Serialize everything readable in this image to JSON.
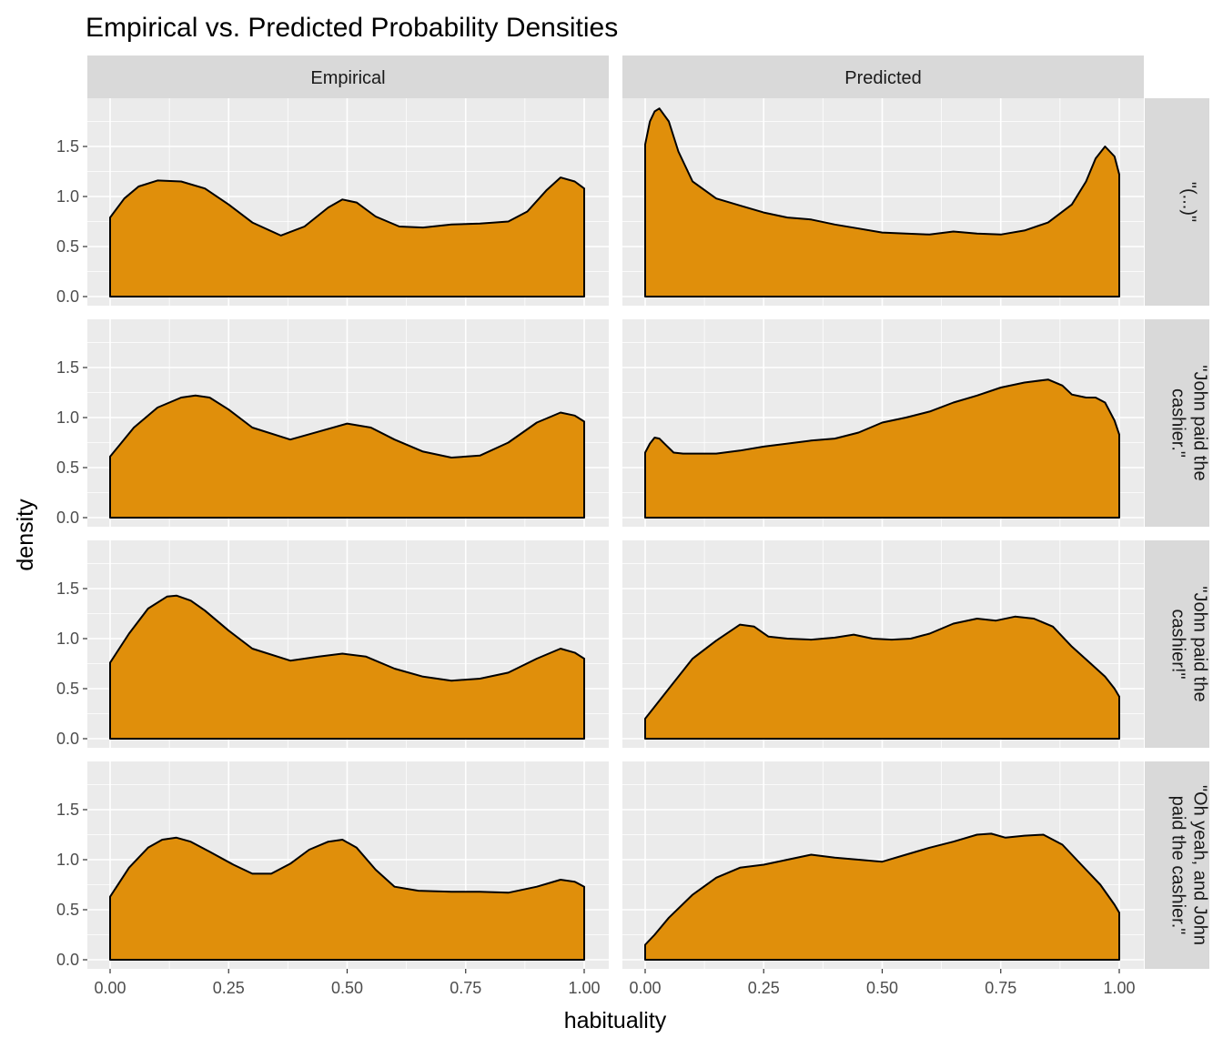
{
  "chart_data": {
    "type": "area",
    "title": "Empirical vs. Predicted Probability Densities",
    "xlabel": "habituality",
    "ylabel": "density",
    "xlim": [
      0,
      1
    ],
    "ylim": [
      0,
      1.85
    ],
    "x_ticks": [
      0.0,
      0.25,
      0.5,
      0.75,
      1.0
    ],
    "x_tick_labels": [
      "0.00",
      "0.25",
      "0.50",
      "0.75",
      "1.00"
    ],
    "y_ticks": [
      0.0,
      0.5,
      1.0,
      1.5
    ],
    "y_tick_labels": [
      "0.0",
      "0.5",
      "1.0",
      "1.5"
    ],
    "fill_color": "#E08F0B",
    "panel_color": "#EBEBEB",
    "strip_color": "#D9D9D9",
    "columns": [
      "Empirical",
      "Predicted"
    ],
    "rows": [
      {
        "label_lines": [
          "\"(...)\""
        ]
      },
      {
        "label_lines": [
          "\"John paid the",
          "cashier.\""
        ]
      },
      {
        "label_lines": [
          "\"John paid the",
          "cashier!\""
        ]
      },
      {
        "label_lines": [
          "\"Oh yeah, and John",
          "paid the cashier.\""
        ]
      }
    ],
    "series": [
      [
        {
          "name": "Empirical",
          "x": [
            0,
            0.03,
            0.06,
            0.1,
            0.15,
            0.2,
            0.25,
            0.3,
            0.36,
            0.41,
            0.46,
            0.49,
            0.52,
            0.56,
            0.61,
            0.66,
            0.72,
            0.78,
            0.84,
            0.88,
            0.92,
            0.95,
            0.98,
            1.0
          ],
          "y": [
            0.79,
            0.98,
            1.1,
            1.16,
            1.15,
            1.08,
            0.92,
            0.74,
            0.61,
            0.7,
            0.89,
            0.97,
            0.94,
            0.8,
            0.7,
            0.69,
            0.72,
            0.73,
            0.75,
            0.85,
            1.06,
            1.19,
            1.15,
            1.08
          ]
        },
        {
          "name": "Predicted",
          "x": [
            0,
            0.01,
            0.02,
            0.03,
            0.05,
            0.07,
            0.1,
            0.15,
            0.2,
            0.25,
            0.3,
            0.35,
            0.4,
            0.45,
            0.5,
            0.55,
            0.6,
            0.65,
            0.7,
            0.75,
            0.8,
            0.85,
            0.9,
            0.93,
            0.95,
            0.97,
            0.99,
            1.0
          ],
          "y": [
            1.52,
            1.75,
            1.85,
            1.88,
            1.75,
            1.45,
            1.15,
            0.98,
            0.91,
            0.84,
            0.79,
            0.77,
            0.72,
            0.68,
            0.64,
            0.63,
            0.62,
            0.65,
            0.63,
            0.62,
            0.66,
            0.74,
            0.92,
            1.15,
            1.38,
            1.5,
            1.4,
            1.22
          ]
        }
      ],
      [
        {
          "name": "Empirical",
          "x": [
            0,
            0.05,
            0.1,
            0.15,
            0.18,
            0.21,
            0.25,
            0.3,
            0.38,
            0.44,
            0.5,
            0.55,
            0.6,
            0.66,
            0.72,
            0.78,
            0.84,
            0.9,
            0.95,
            0.98,
            1.0
          ],
          "y": [
            0.61,
            0.9,
            1.1,
            1.2,
            1.22,
            1.2,
            1.08,
            0.9,
            0.78,
            0.86,
            0.94,
            0.9,
            0.78,
            0.66,
            0.6,
            0.62,
            0.75,
            0.95,
            1.05,
            1.02,
            0.96
          ]
        },
        {
          "name": "Predicted",
          "x": [
            0,
            0.01,
            0.02,
            0.03,
            0.045,
            0.06,
            0.08,
            0.1,
            0.15,
            0.2,
            0.25,
            0.3,
            0.35,
            0.4,
            0.45,
            0.5,
            0.55,
            0.6,
            0.65,
            0.7,
            0.75,
            0.8,
            0.85,
            0.88,
            0.9,
            0.93,
            0.95,
            0.97,
            0.99,
            1.0
          ],
          "y": [
            0.65,
            0.74,
            0.8,
            0.79,
            0.72,
            0.65,
            0.64,
            0.64,
            0.64,
            0.67,
            0.71,
            0.74,
            0.77,
            0.79,
            0.85,
            0.95,
            1.0,
            1.06,
            1.15,
            1.22,
            1.3,
            1.35,
            1.38,
            1.32,
            1.23,
            1.2,
            1.2,
            1.15,
            0.97,
            0.83
          ]
        }
      ],
      [
        {
          "name": "Empirical",
          "x": [
            0,
            0.04,
            0.08,
            0.12,
            0.14,
            0.17,
            0.2,
            0.25,
            0.3,
            0.38,
            0.44,
            0.49,
            0.54,
            0.6,
            0.66,
            0.72,
            0.78,
            0.84,
            0.9,
            0.95,
            0.98,
            1.0
          ],
          "y": [
            0.76,
            1.05,
            1.3,
            1.42,
            1.43,
            1.38,
            1.28,
            1.08,
            0.9,
            0.78,
            0.82,
            0.85,
            0.82,
            0.7,
            0.62,
            0.58,
            0.6,
            0.66,
            0.8,
            0.9,
            0.86,
            0.8
          ]
        },
        {
          "name": "Predicted",
          "x": [
            0,
            0.05,
            0.1,
            0.15,
            0.2,
            0.23,
            0.26,
            0.3,
            0.35,
            0.4,
            0.44,
            0.48,
            0.52,
            0.56,
            0.6,
            0.65,
            0.7,
            0.74,
            0.78,
            0.82,
            0.86,
            0.9,
            0.94,
            0.97,
            0.99,
            1.0
          ],
          "y": [
            0.2,
            0.5,
            0.8,
            0.98,
            1.14,
            1.12,
            1.02,
            1.0,
            0.99,
            1.01,
            1.04,
            1.0,
            0.99,
            1.0,
            1.05,
            1.15,
            1.2,
            1.18,
            1.22,
            1.2,
            1.12,
            0.92,
            0.75,
            0.62,
            0.5,
            0.42
          ]
        }
      ],
      [
        {
          "name": "Empirical",
          "x": [
            0,
            0.04,
            0.08,
            0.11,
            0.14,
            0.17,
            0.21,
            0.26,
            0.3,
            0.34,
            0.38,
            0.42,
            0.46,
            0.49,
            0.52,
            0.56,
            0.6,
            0.65,
            0.72,
            0.78,
            0.84,
            0.9,
            0.95,
            0.98,
            1.0
          ],
          "y": [
            0.63,
            0.92,
            1.12,
            1.2,
            1.22,
            1.18,
            1.08,
            0.95,
            0.86,
            0.86,
            0.96,
            1.1,
            1.18,
            1.2,
            1.12,
            0.9,
            0.73,
            0.69,
            0.68,
            0.68,
            0.67,
            0.73,
            0.8,
            0.78,
            0.73
          ]
        },
        {
          "name": "Predicted",
          "x": [
            0,
            0.02,
            0.05,
            0.1,
            0.15,
            0.2,
            0.25,
            0.3,
            0.35,
            0.4,
            0.45,
            0.5,
            0.55,
            0.6,
            0.65,
            0.7,
            0.73,
            0.76,
            0.8,
            0.84,
            0.88,
            0.92,
            0.96,
            0.99,
            1.0
          ],
          "y": [
            0.15,
            0.25,
            0.42,
            0.65,
            0.82,
            0.92,
            0.95,
            1.0,
            1.05,
            1.02,
            1.0,
            0.98,
            1.05,
            1.12,
            1.18,
            1.25,
            1.26,
            1.22,
            1.24,
            1.25,
            1.15,
            0.95,
            0.75,
            0.55,
            0.47
          ]
        }
      ]
    ]
  }
}
